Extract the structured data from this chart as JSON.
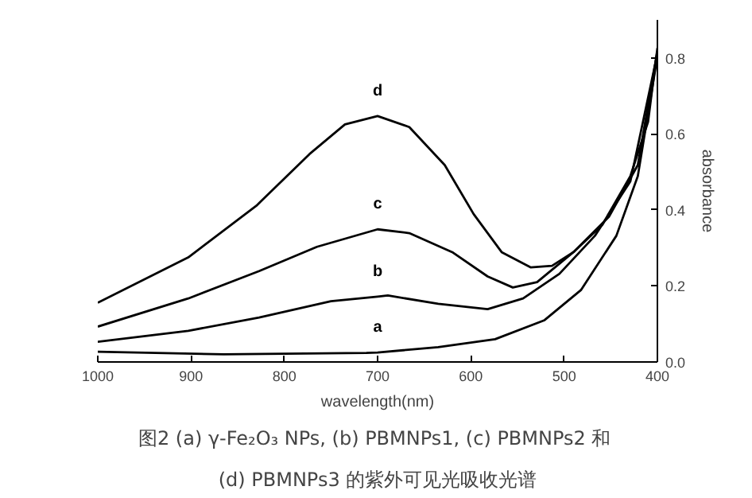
{
  "chart_data": {
    "type": "line",
    "xlabel": "wavelength(nm)",
    "ylabel": "absorbance",
    "xlim": [
      1000,
      400
    ],
    "ylim": [
      0,
      0.9
    ],
    "xticks": [
      1000,
      900,
      800,
      700,
      600,
      500,
      400
    ],
    "yticks": [
      {
        "value": 0,
        "label": "0.0"
      },
      0.2,
      0.4,
      0.6,
      0.8
    ],
    "grid": false,
    "marker": "none",
    "line_style": "solid",
    "series": [
      {
        "name": "d",
        "color": "#000000",
        "x": [
          1000,
          903,
          830,
          773,
          735,
          700,
          666,
          628,
          597,
          567,
          536,
          513,
          490,
          459,
          429,
          410,
          400
        ],
        "values": [
          0.156,
          0.275,
          0.411,
          0.547,
          0.625,
          0.647,
          0.618,
          0.518,
          0.389,
          0.289,
          0.249,
          0.253,
          0.289,
          0.361,
          0.489,
          0.632,
          0.826
        ]
      },
      {
        "name": "c",
        "color": "#000000",
        "x": [
          1000,
          903,
          827,
          765,
          700,
          666,
          620,
          582,
          555,
          529,
          490,
          452,
          421,
          400
        ],
        "values": [
          0.093,
          0.167,
          0.239,
          0.303,
          0.349,
          0.339,
          0.289,
          0.225,
          0.196,
          0.21,
          0.289,
          0.382,
          0.518,
          0.818
        ]
      },
      {
        "name": "b",
        "color": "#000000",
        "x": [
          1000,
          903,
          827,
          750,
          700,
          689,
          635,
          582,
          544,
          505,
          467,
          429,
          400
        ],
        "values": [
          0.053,
          0.082,
          0.117,
          0.16,
          0.172,
          0.175,
          0.153,
          0.139,
          0.167,
          0.232,
          0.332,
          0.475,
          0.811
        ]
      },
      {
        "name": "a",
        "color": "#000000",
        "x": [
          1000,
          865,
          712,
          700,
          635,
          574,
          521,
          482,
          444,
          421,
          400
        ],
        "values": [
          0.027,
          0.02,
          0.024,
          0.025,
          0.039,
          0.06,
          0.11,
          0.189,
          0.332,
          0.489,
          0.804
        ]
      }
    ],
    "annotations": [
      "图2  (a) γ-Fe₂O₃ NPs, (b) PBMNPs1, (c) PBMNPs2 和",
      "(d) PBMNPs3 的紫外可见光吸收光谱"
    ]
  }
}
